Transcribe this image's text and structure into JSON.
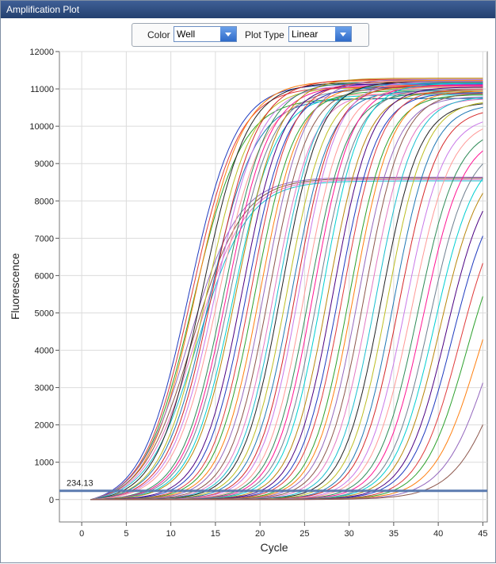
{
  "window": {
    "title": "Amplification Plot"
  },
  "controls": {
    "color_label": "Color",
    "color_value": "Well",
    "plot_type_label": "Plot Type",
    "plot_type_value": "Linear"
  },
  "chart_data": {
    "type": "line",
    "title": "",
    "xlabel": "Cycle",
    "ylabel": "Fluorescence",
    "xlim": [
      -2.5,
      45.5
    ],
    "ylim": [
      -600,
      12000
    ],
    "x_ticks": [
      0,
      5,
      10,
      15,
      20,
      25,
      30,
      35,
      40,
      45
    ],
    "y_ticks": [
      0,
      1000,
      2000,
      3000,
      4000,
      5000,
      6000,
      7000,
      8000,
      9000,
      10000,
      11000,
      12000
    ],
    "grid": true,
    "threshold": {
      "value": 234.13,
      "label": "234.13",
      "color": "#5b7bb0"
    },
    "x_range": [
      1,
      45
    ],
    "series_colors": [
      "#1f3bbf",
      "#e03a3a",
      "#2ca02c",
      "#ff7f0e",
      "#9467bd",
      "#8c564b",
      "#e377c2",
      "#17becf",
      "#222222",
      "#bcbd22",
      "#1f77b4",
      "#d62728",
      "#c978e8",
      "#ff9896",
      "#2e8b57",
      "#ff1493",
      "#708090",
      "#00ced1",
      "#b8860b",
      "#4b0082"
    ],
    "series": [
      {
        "ct": 8.0,
        "max": 11300,
        "k": 0.38
      },
      {
        "ct": 8.3,
        "max": 11200,
        "k": 0.38
      },
      {
        "ct": 8.5,
        "max": 10900,
        "k": 0.37
      },
      {
        "ct": 8.8,
        "max": 11350,
        "k": 0.38
      },
      {
        "ct": 8.0,
        "max": 8800,
        "k": 0.36
      },
      {
        "ct": 8.4,
        "max": 8750,
        "k": 0.36
      },
      {
        "ct": 8.7,
        "max": 8700,
        "k": 0.36
      },
      {
        "ct": 9.0,
        "max": 8650,
        "k": 0.36
      },
      {
        "ct": 9.5,
        "max": 11250,
        "k": 0.4
      },
      {
        "ct": 10.0,
        "max": 11100,
        "k": 0.4
      },
      {
        "ct": 10.3,
        "max": 10800,
        "k": 0.39
      },
      {
        "ct": 10.7,
        "max": 11300,
        "k": 0.4
      },
      {
        "ct": 11.0,
        "max": 11150,
        "k": 0.4
      },
      {
        "ct": 11.3,
        "max": 10900,
        "k": 0.4
      },
      {
        "ct": 12.0,
        "max": 11200,
        "k": 0.42
      },
      {
        "ct": 12.3,
        "max": 11100,
        "k": 0.42
      },
      {
        "ct": 12.6,
        "max": 11000,
        "k": 0.42
      },
      {
        "ct": 13.0,
        "max": 10850,
        "k": 0.42
      },
      {
        "ct": 13.4,
        "max": 11300,
        "k": 0.42
      },
      {
        "ct": 14.0,
        "max": 11150,
        "k": 0.44
      },
      {
        "ct": 14.5,
        "max": 11050,
        "k": 0.44
      },
      {
        "ct": 15.0,
        "max": 11200,
        "k": 0.45
      },
      {
        "ct": 15.4,
        "max": 10950,
        "k": 0.45
      },
      {
        "ct": 16.0,
        "max": 11100,
        "k": 0.45
      },
      {
        "ct": 16.5,
        "max": 11250,
        "k": 0.45
      },
      {
        "ct": 17.0,
        "max": 11050,
        "k": 0.46
      },
      {
        "ct": 17.5,
        "max": 10900,
        "k": 0.46
      },
      {
        "ct": 18.0,
        "max": 11150,
        "k": 0.46
      },
      {
        "ct": 18.4,
        "max": 11200,
        "k": 0.46
      },
      {
        "ct": 19.0,
        "max": 11050,
        "k": 0.46
      },
      {
        "ct": 19.5,
        "max": 10950,
        "k": 0.46
      },
      {
        "ct": 20.0,
        "max": 11100,
        "k": 0.47
      },
      {
        "ct": 20.4,
        "max": 11200,
        "k": 0.47
      },
      {
        "ct": 21.0,
        "max": 11050,
        "k": 0.47
      },
      {
        "ct": 21.5,
        "max": 10900,
        "k": 0.47
      },
      {
        "ct": 22.0,
        "max": 11100,
        "k": 0.47
      },
      {
        "ct": 22.5,
        "max": 11000,
        "k": 0.47
      },
      {
        "ct": 23.0,
        "max": 11150,
        "k": 0.47
      },
      {
        "ct": 23.6,
        "max": 10950,
        "k": 0.47
      },
      {
        "ct": 24.2,
        "max": 11050,
        "k": 0.47
      },
      {
        "ct": 24.8,
        "max": 10900,
        "k": 0.47
      },
      {
        "ct": 25.3,
        "max": 11000,
        "k": 0.47
      },
      {
        "ct": 26.0,
        "max": 10850,
        "k": 0.47
      },
      {
        "ct": 26.5,
        "max": 10950,
        "k": 0.47
      },
      {
        "ct": 27.0,
        "max": 10800,
        "k": 0.47
      },
      {
        "ct": 27.7,
        "max": 10900,
        "k": 0.47
      },
      {
        "ct": 28.3,
        "max": 10750,
        "k": 0.47
      },
      {
        "ct": 29.0,
        "max": 10800,
        "k": 0.47
      },
      {
        "ct": 29.6,
        "max": 10650,
        "k": 0.47
      },
      {
        "ct": 30.3,
        "max": 10700,
        "k": 0.47
      },
      {
        "ct": 31.0,
        "max": 10600,
        "k": 0.47
      },
      {
        "ct": 31.6,
        "max": 10500,
        "k": 0.46
      },
      {
        "ct": 32.3,
        "max": 10300,
        "k": 0.46
      },
      {
        "ct": 33.0,
        "max": 10200,
        "k": 0.45
      },
      {
        "ct": 33.7,
        "max": 10000,
        "k": 0.45
      },
      {
        "ct": 34.3,
        "max": 9800,
        "k": 0.45
      },
      {
        "ct": 35.0,
        "max": 9600,
        "k": 0.45
      },
      {
        "ct": 35.6,
        "max": 9400,
        "k": 0.44
      },
      {
        "ct": 36.2,
        "max": 9200,
        "k": 0.44
      },
      {
        "ct": 36.9,
        "max": 9000,
        "k": 0.44
      },
      {
        "ct": 37.6,
        "max": 8700,
        "k": 0.43
      },
      {
        "ct": 38.4,
        "max": 8400,
        "k": 0.43
      },
      {
        "ct": 39.2,
        "max": 8000,
        "k": 0.42
      },
      {
        "ct": 40.5,
        "max": 7800,
        "k": 0.4
      },
      {
        "ct": 42.0,
        "max": 7700,
        "k": 0.38
      },
      {
        "ct": 43.8,
        "max": 7500,
        "k": 0.36
      }
    ]
  }
}
